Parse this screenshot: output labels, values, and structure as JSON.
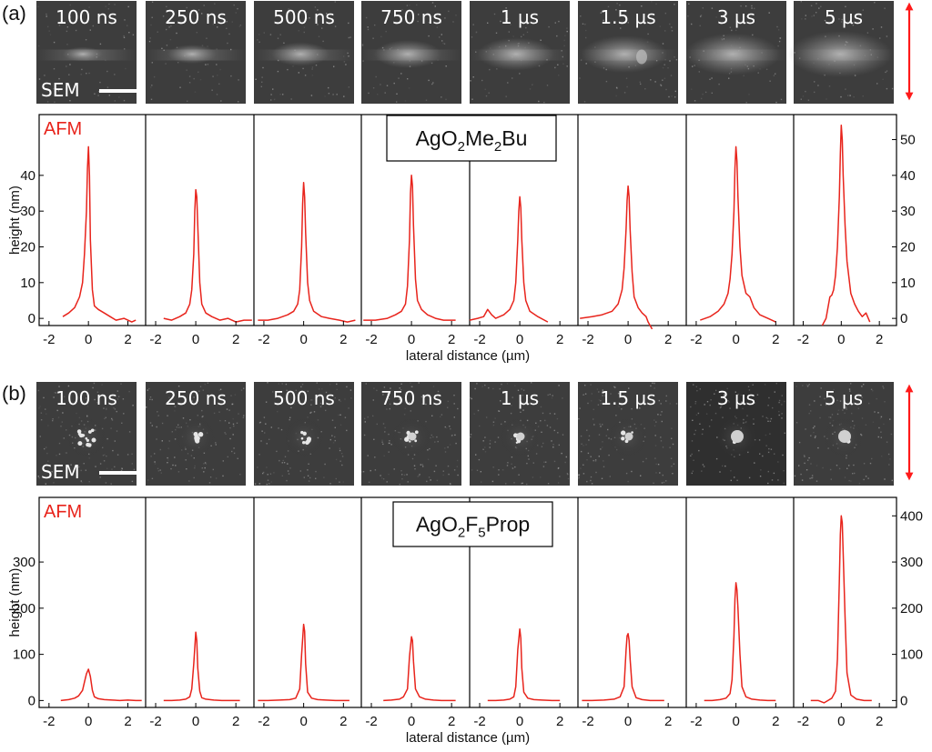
{
  "figure": {
    "panels": [
      {
        "tag": "(a)",
        "sample": {
          "main": "AgO",
          "parts": [
            [
              "sub",
              "2"
            ],
            [
              "n",
              "Me"
            ],
            [
              "sub",
              "2"
            ],
            [
              "n",
              "Bu"
            ]
          ]
        },
        "sem_label": "SEM",
        "afm_label": "AFM",
        "frames": [
          "100 ns",
          "250 ns",
          "500 ns",
          "750 ns",
          "1 µs",
          "1.5 µs",
          "3 µs",
          "5 µs"
        ],
        "style": "film"
      },
      {
        "tag": "(b)",
        "sample": {
          "main": "AgO",
          "parts": [
            [
              "sub",
              "2"
            ],
            [
              "n",
              "F"
            ],
            [
              "sub",
              "5"
            ],
            [
              "n",
              "Prop"
            ]
          ]
        },
        "sem_label": "SEM",
        "afm_label": "AFM",
        "frames": [
          "100 ns",
          "250 ns",
          "500 ns",
          "750 ns",
          "1 µs",
          "1.5 µs",
          "3 µs",
          "5 µs"
        ],
        "style": "particles"
      }
    ]
  },
  "chart_data": [
    {
      "type": "line",
      "ylabel": "height (nm)",
      "xlabel": "lateral distance (µm)",
      "ylim": [
        -2,
        57
      ],
      "y_ticks": [
        0,
        10,
        20,
        30,
        40
      ],
      "y_ticks_right": [
        0,
        10,
        20,
        30,
        40,
        50
      ],
      "x_ticks": [
        -2,
        0,
        2
      ],
      "x_tick_labels": [
        "-2",
        "0",
        "2"
      ],
      "xlim": [
        -2.5,
        2.9
      ],
      "line_color": "#e8241c",
      "series": [
        {
          "x": [
            -1.3,
            -1.0,
            -0.7,
            -0.45,
            -0.3,
            -0.2,
            -0.1,
            -0.05,
            0.0,
            0.05,
            0.1,
            0.2,
            0.3,
            0.5,
            0.8,
            1.1,
            1.4,
            1.8,
            2.2,
            2.4
          ],
          "y": [
            0.5,
            1.5,
            3,
            6,
            10,
            18,
            30,
            42,
            48,
            40,
            22,
            8,
            3.5,
            2.5,
            1.5,
            0.5,
            -0.5,
            0,
            -1,
            -0.5
          ]
        },
        {
          "x": [
            -1.6,
            -1.2,
            -0.8,
            -0.5,
            -0.3,
            -0.2,
            -0.1,
            -0.05,
            0.0,
            0.05,
            0.1,
            0.2,
            0.3,
            0.5,
            0.8,
            1.2,
            1.6,
            2.0,
            2.4,
            2.8
          ],
          "y": [
            0,
            -0.5,
            0.5,
            1.5,
            4,
            8,
            18,
            30,
            36,
            34,
            26,
            10,
            4,
            1.5,
            0.5,
            -0.5,
            0,
            -1,
            -0.5,
            -0.5
          ]
        },
        {
          "x": [
            -2.3,
            -1.8,
            -1.3,
            -0.8,
            -0.5,
            -0.3,
            -0.2,
            -0.1,
            -0.05,
            0.0,
            0.05,
            0.1,
            0.2,
            0.3,
            0.5,
            0.9,
            1.3,
            1.8,
            2.2,
            2.6
          ],
          "y": [
            -0.5,
            -0.5,
            0,
            1,
            2,
            4,
            8,
            20,
            32,
            38,
            34,
            24,
            10,
            5,
            2,
            0.5,
            0,
            -0.5,
            -1,
            -0.5
          ]
        },
        {
          "x": [
            -2.4,
            -1.8,
            -1.2,
            -0.8,
            -0.5,
            -0.3,
            -0.2,
            -0.1,
            -0.05,
            0.0,
            0.05,
            0.1,
            0.2,
            0.3,
            0.5,
            0.8,
            1.2,
            1.6,
            2.0,
            2.2
          ],
          "y": [
            -0.5,
            -0.5,
            0,
            1,
            2,
            4,
            9,
            22,
            35,
            40,
            37,
            26,
            11,
            5,
            2.5,
            1,
            0,
            -0.5,
            -0.5,
            -0.5
          ]
        },
        {
          "x": [
            -2.5,
            -2.1,
            -1.8,
            -1.6,
            -1.4,
            -1.2,
            -0.8,
            -0.5,
            -0.3,
            -0.2,
            -0.1,
            -0.05,
            0.0,
            0.05,
            0.1,
            0.2,
            0.3,
            0.5,
            0.9,
            1.4
          ],
          "y": [
            -0.5,
            0,
            0.5,
            2.5,
            1,
            0,
            1,
            2.5,
            5,
            10,
            22,
            30,
            34,
            31,
            22,
            10,
            5,
            2,
            0.5,
            -1
          ]
        },
        {
          "x": [
            -2.4,
            -1.8,
            -1.3,
            -0.8,
            -0.5,
            -0.3,
            -0.2,
            -0.1,
            -0.05,
            0.0,
            0.05,
            0.1,
            0.2,
            0.3,
            0.5,
            0.7,
            0.9,
            1.0,
            1.1,
            1.2
          ],
          "y": [
            0,
            0.5,
            1,
            2,
            4,
            8,
            14,
            25,
            33,
            37,
            34,
            25,
            13,
            6,
            3,
            1.5,
            0.5,
            -1,
            -2,
            -3
          ]
        },
        {
          "x": [
            -1.8,
            -1.3,
            -0.9,
            -0.6,
            -0.4,
            -0.3,
            -0.2,
            -0.1,
            -0.05,
            0.0,
            0.05,
            0.1,
            0.2,
            0.3,
            0.5,
            0.7,
            0.9,
            1.2,
            1.6,
            2.0
          ],
          "y": [
            -0.5,
            0.5,
            2,
            4,
            7,
            11,
            18,
            30,
            42,
            48,
            44,
            34,
            20,
            12,
            7,
            6,
            3,
            1,
            0,
            -1
          ]
        },
        {
          "x": [
            -1.0,
            -0.8,
            -0.6,
            -0.5,
            -0.4,
            -0.3,
            -0.2,
            -0.1,
            -0.05,
            0.0,
            0.05,
            0.1,
            0.2,
            0.3,
            0.5,
            0.7,
            0.9,
            1.1,
            1.3,
            1.5
          ],
          "y": [
            -2,
            0,
            6,
            6.5,
            8,
            12,
            20,
            34,
            46,
            54,
            50,
            40,
            26,
            16,
            7,
            4,
            2,
            0.5,
            1.5,
            -1
          ]
        }
      ]
    },
    {
      "type": "line",
      "ylabel": "height (nm)",
      "xlabel": "lateral distance (µm)",
      "ylim": [
        -15,
        440
      ],
      "y_ticks": [
        0,
        100,
        200,
        300
      ],
      "y_ticks_right": [
        0,
        100,
        200,
        300,
        400
      ],
      "x_ticks": [
        -2,
        0,
        2
      ],
      "x_tick_labels": [
        "-2",
        "0",
        "2"
      ],
      "xlim": [
        -2.5,
        2.9
      ],
      "line_color": "#e8241c",
      "series": [
        {
          "x": [
            -1.4,
            -1.0,
            -0.7,
            -0.5,
            -0.3,
            -0.2,
            -0.1,
            0.0,
            0.1,
            0.2,
            0.3,
            0.5,
            0.8,
            1.2,
            1.6,
            2.0,
            2.4,
            2.7
          ],
          "y": [
            0,
            2,
            5,
            10,
            22,
            40,
            58,
            68,
            52,
            22,
            8,
            4,
            2,
            1,
            0,
            1,
            0,
            0
          ]
        },
        {
          "x": [
            -1.6,
            -1.2,
            -0.8,
            -0.5,
            -0.3,
            -0.2,
            -0.1,
            0.0,
            0.05,
            0.1,
            0.2,
            0.3,
            0.5,
            0.9,
            1.3,
            1.8,
            2.2
          ],
          "y": [
            0,
            0,
            1,
            3,
            8,
            25,
            80,
            148,
            130,
            70,
            20,
            6,
            3,
            1,
            0,
            0,
            0
          ]
        },
        {
          "x": [
            -2.3,
            -1.8,
            -1.2,
            -0.7,
            -0.4,
            -0.2,
            -0.1,
            0.0,
            0.05,
            0.1,
            0.2,
            0.4,
            0.7,
            1.1,
            1.6,
            2.0,
            2.3
          ],
          "y": [
            0,
            0,
            1,
            2,
            5,
            25,
            100,
            165,
            150,
            80,
            18,
            5,
            2,
            1,
            0,
            0,
            0
          ]
        },
        {
          "x": [
            -1.4,
            -1.0,
            -0.6,
            -0.4,
            -0.2,
            -0.1,
            0.0,
            0.05,
            0.1,
            0.2,
            0.4,
            0.7,
            1.1,
            1.5,
            1.9,
            2.2
          ],
          "y": [
            0,
            1,
            3,
            8,
            25,
            95,
            138,
            130,
            85,
            25,
            8,
            3,
            1,
            0,
            0,
            0
          ]
        },
        {
          "x": [
            -1.6,
            -1.2,
            -0.8,
            -0.5,
            -0.3,
            -0.2,
            -0.1,
            0.0,
            0.05,
            0.1,
            0.2,
            0.4,
            0.7,
            1.1,
            1.6,
            2.0
          ],
          "y": [
            0,
            0,
            1,
            3,
            8,
            30,
            110,
            155,
            135,
            70,
            18,
            5,
            2,
            1,
            0,
            0
          ]
        },
        {
          "x": [
            -2.3,
            -1.8,
            -1.2,
            -0.7,
            -0.4,
            -0.2,
            -0.1,
            -0.05,
            0.0,
            0.05,
            0.1,
            0.2,
            0.4,
            0.7,
            1.1,
            1.5,
            1.8
          ],
          "y": [
            0,
            0,
            1,
            3,
            8,
            30,
            110,
            140,
            145,
            130,
            90,
            30,
            6,
            2,
            0,
            0,
            0
          ]
        },
        {
          "x": [
            -1.6,
            -1.2,
            -0.8,
            -0.5,
            -0.3,
            -0.2,
            -0.1,
            -0.05,
            0.0,
            0.05,
            0.1,
            0.2,
            0.3,
            0.5,
            0.8,
            1.2,
            1.6,
            2.0
          ],
          "y": [
            0,
            0,
            2,
            5,
            15,
            45,
            140,
            220,
            255,
            240,
            200,
            100,
            30,
            8,
            3,
            1,
            0,
            0
          ]
        },
        {
          "x": [
            -1.6,
            -1.2,
            -0.9,
            -0.7,
            -0.5,
            -0.3,
            -0.2,
            -0.1,
            -0.05,
            0.0,
            0.05,
            0.1,
            0.2,
            0.3,
            0.5,
            0.8,
            1.2,
            1.6
          ],
          "y": [
            0,
            0,
            -5,
            0,
            5,
            20,
            90,
            260,
            360,
            400,
            385,
            320,
            180,
            60,
            12,
            3,
            0,
            0
          ]
        }
      ]
    }
  ]
}
